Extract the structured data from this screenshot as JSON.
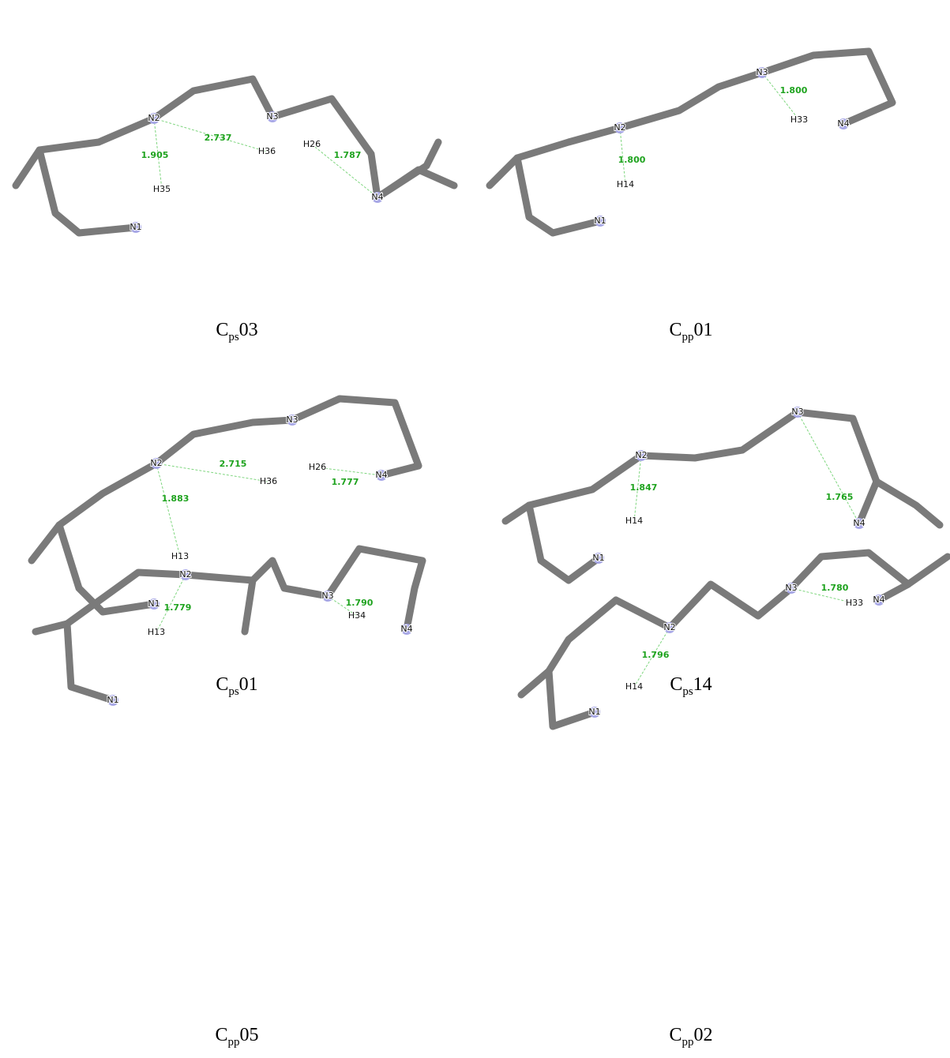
{
  "panels": [
    {
      "caption": {
        "base": "C",
        "sub": "ps",
        "num": "03"
      },
      "atoms": [
        "N1",
        "N2",
        "N3",
        "N4",
        "H35",
        "H36",
        "H26"
      ],
      "distances": [
        "1.905",
        "2.737",
        "1.787"
      ]
    },
    {
      "caption": {
        "base": "C",
        "sub": "pp",
        "num": "01"
      },
      "atoms": [
        "N1",
        "N2",
        "N3",
        "N4",
        "H14",
        "H33"
      ],
      "distances": [
        "1.800",
        "1.800"
      ]
    },
    {
      "caption": {
        "base": "C",
        "sub": "ps",
        "num": "01"
      },
      "atoms": [
        "N1",
        "N2",
        "N3",
        "N4",
        "H13",
        "H36",
        "H26"
      ],
      "distances": [
        "1.883",
        "2.715",
        "1.777"
      ]
    },
    {
      "caption": {
        "base": "C",
        "sub": "ps",
        "num": "14"
      },
      "atoms": [
        "N1",
        "N2",
        "N3",
        "N4",
        "H14"
      ],
      "distances": [
        "1.847",
        "1.765"
      ]
    },
    {
      "caption": {
        "base": "C",
        "sub": "pp",
        "num": "05"
      },
      "atoms": [
        "N1",
        "N2",
        "N3",
        "N4",
        "H13",
        "H34"
      ],
      "distances": [
        "1.779",
        "1.790"
      ]
    },
    {
      "caption": {
        "base": "C",
        "sub": "pp",
        "num": "02"
      },
      "atoms": [
        "N1",
        "N2",
        "N3",
        "N4",
        "H14",
        "H33"
      ],
      "distances": [
        "1.796",
        "1.780"
      ]
    }
  ]
}
